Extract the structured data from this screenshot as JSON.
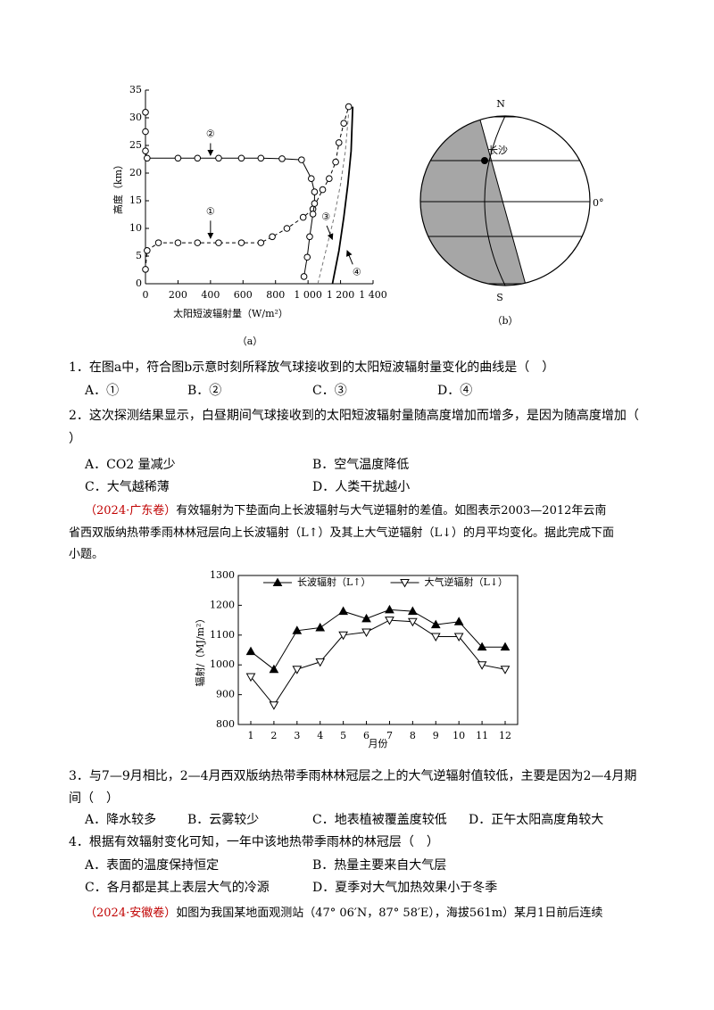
{
  "chart_data": [
    {
      "type": "line",
      "ylabel": "高度（km）",
      "xlabel": "太阳短波辐射量（W/m²）",
      "caption": "（a）",
      "xlim": [
        0,
        1400
      ],
      "ylim": [
        0,
        35
      ],
      "xticks": [
        0,
        200,
        400,
        600,
        800,
        {
          "value": 1000,
          "label": "1 000"
        },
        {
          "value": 1200,
          "label": "1 200"
        },
        {
          "value": 1400,
          "label": "1 400"
        }
      ],
      "yticks": [
        0,
        5,
        10,
        15,
        20,
        25,
        30,
        35
      ],
      "series": [
        {
          "label": "①",
          "color": "#000000",
          "dash": true,
          "marker": "circle",
          "x": [
            0,
            10,
            80,
            200,
            320,
            450,
            590,
            710,
            780,
            870,
            970,
            1030,
            1090,
            1130,
            1170,
            1190,
            1220,
            1250
          ],
          "values": [
            2.6,
            6,
            7.4,
            7.4,
            7.4,
            7.4,
            7.4,
            7.4,
            8.5,
            10,
            12,
            13.5,
            17,
            19,
            22,
            25.5,
            29,
            32
          ]
        },
        {
          "label": "②",
          "color": "#000000",
          "dash": false,
          "marker": "circle",
          "x": [
            0,
            0,
            0,
            10,
            200,
            320,
            450,
            590,
            710,
            840,
            960,
            1020,
            1040,
            1040,
            1030,
            1010,
            995,
            975
          ],
          "values": [
            31,
            27.5,
            24,
            22.7,
            22.7,
            22.7,
            22.7,
            22.7,
            22.7,
            22.6,
            22.4,
            19,
            16.6,
            14.5,
            12.6,
            8.5,
            4.8,
            1.3
          ]
        },
        {
          "label": "③",
          "color": "#777777",
          "dash": true,
          "marker": "none",
          "x": [
            1060,
            1110,
            1160,
            1200,
            1230,
            1250
          ],
          "values": [
            0,
            6,
            12,
            18,
            24,
            31
          ]
        },
        {
          "label": "④",
          "color": "#000000",
          "dash": false,
          "marker": "none",
          "x": [
            1150,
            1190,
            1220,
            1245,
            1265,
            1275
          ],
          "values": [
            0,
            6,
            12,
            18,
            24,
            32
          ]
        }
      ]
    },
    {
      "type": "line",
      "ylabel": "辐射/（MJ/m²）",
      "xlabel": "月份",
      "x": [
        1,
        2,
        3,
        4,
        5,
        6,
        7,
        8,
        9,
        10,
        11,
        12
      ],
      "xlim": [
        1,
        12
      ],
      "ylim": [
        800,
        1300
      ],
      "xticks": [
        1,
        2,
        3,
        4,
        5,
        6,
        7,
        8,
        9,
        10,
        11,
        12
      ],
      "yticks": [
        800,
        900,
        1000,
        1100,
        1200,
        1300
      ],
      "legend": "top",
      "series": [
        {
          "name": "长波辐射（L↑）",
          "color": "#000000",
          "marker": "triangle-up-filled",
          "values": [
            1045,
            985,
            1115,
            1125,
            1180,
            1155,
            1185,
            1180,
            1135,
            1145,
            1060,
            1060
          ]
        },
        {
          "name": "大气逆辐射（L↓）",
          "color": "#000000",
          "marker": "triangle-down-open",
          "values": [
            960,
            865,
            985,
            1010,
            1100,
            1110,
            1150,
            1145,
            1095,
            1095,
            1000,
            985
          ]
        }
      ]
    }
  ],
  "figure_b": {
    "north": "N",
    "south": "S",
    "city": "长沙",
    "equator": "0°",
    "caption": "（b）"
  },
  "q1": {
    "stem": "1．在图a中，符合图b示意时刻所释放气球接收到的太阳短波辐射量变化的曲线是（　）",
    "options": [
      "A．①",
      "B．②",
      "C．③",
      "D．④"
    ]
  },
  "q2": {
    "stem": [
      "2．这次探测结果显示，白昼期间气球接收到的太阳短波辐射量随高度增加而增多，是因为随高度增加（",
      "）"
    ],
    "options": [
      "A．CO2 量减少",
      "B．空气温度降低",
      "C．大气越稀薄",
      "D．人类干扰越小"
    ]
  },
  "passage1": {
    "source": "（2024·广东卷）",
    "lines": [
      "有效辐射为下垫面向上长波辐射与大气逆辐射的差值。如图表示2003—2012年云南",
      "省西双版纳热带季雨林林冠层向上长波辐射（L↑）及其上大气逆辐射（L↓）的月平均变化。据此完成下面",
      "小题。"
    ]
  },
  "q3": {
    "stem": [
      "3．与7—9月相比，2—4月西双版纳热带季雨林林冠层之上的大气逆辐射值较低，主要是因为2—4月期",
      "间（　）"
    ],
    "options": [
      "A．降水较多",
      "B．云雾较少",
      "C．地表植被覆盖度较低",
      "D．正午太阳高度角较大"
    ]
  },
  "q4": {
    "stem": "4．根据有效辐射变化可知，一年中该地热带季雨林的林冠层（　）",
    "options": [
      "A．表面的温度保持恒定",
      "B．热量主要来自大气层",
      "C．各月都是其上表层大气的冷源",
      "D．夏季对大气加热效果小于冬季"
    ]
  },
  "passage2": {
    "source": "（2024·安徽卷）",
    "lines": [
      "如图为我国某地面观测站（47° 06′N，87° 58′E），海拔561m）某月1日前后连续"
    ]
  }
}
